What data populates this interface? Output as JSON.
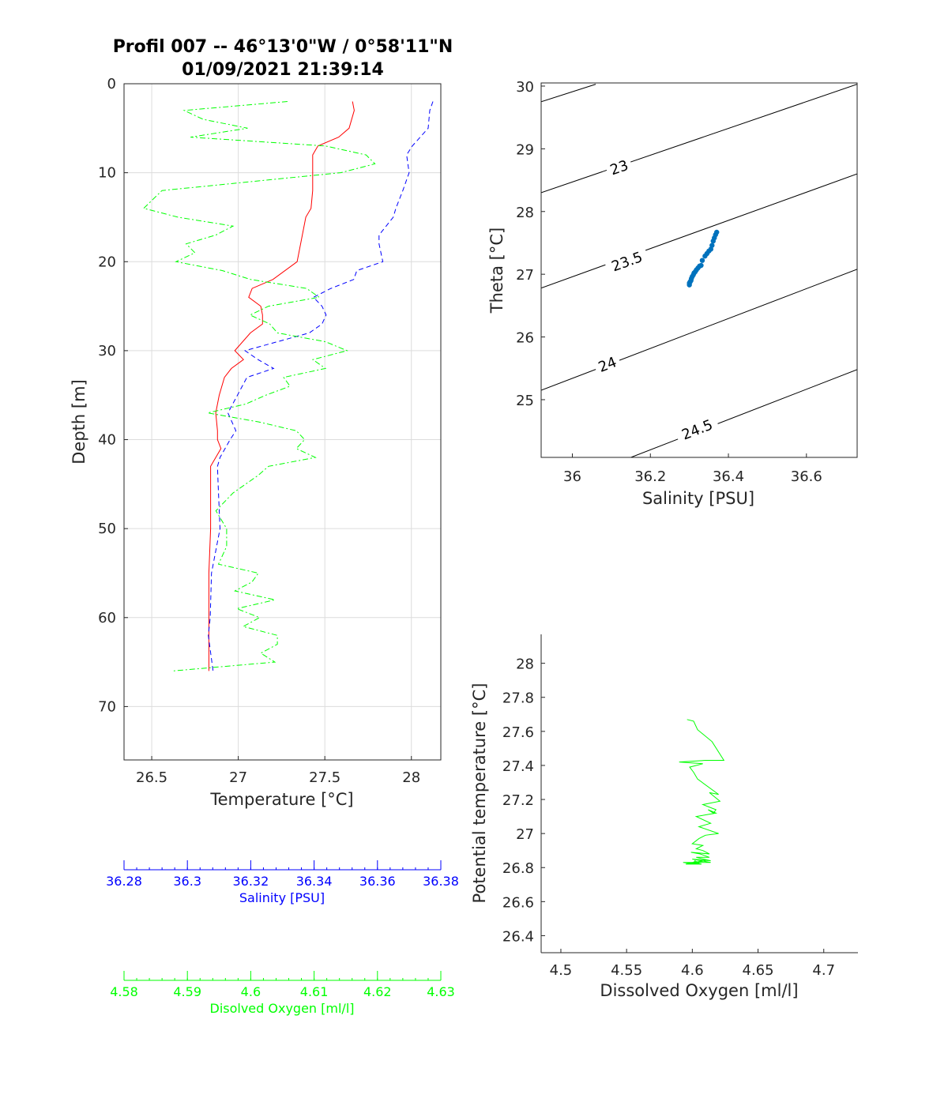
{
  "chart_data": [
    {
      "type": "line",
      "title": "Profil 007 -- 46°13'0\"W / 0°58'11\"N",
      "subtitle": "01/09/2021 21:39:14",
      "ylabel": "Depth [m]",
      "yreversed": true,
      "ylim": [
        0,
        76
      ],
      "yticks": [
        0,
        10,
        20,
        30,
        40,
        50,
        60,
        70
      ],
      "grid": true,
      "axes": [
        {
          "id": "temp",
          "label": "Temperature [°C]",
          "range": [
            26.34,
            28.17
          ],
          "ticks": [
            26.5,
            27,
            27.5,
            28
          ],
          "tick_labels": [
            "26.5",
            "27",
            "27.5",
            "28"
          ],
          "color": "#262626"
        },
        {
          "id": "sal",
          "label": "Salinity [PSU]",
          "range": [
            36.28,
            36.38
          ],
          "ticks": [
            36.28,
            36.3,
            36.32,
            36.34,
            36.36,
            36.38
          ],
          "tick_labels": [
            "36.28",
            "36.3",
            "36.32",
            "36.34",
            "36.36",
            "36.38"
          ],
          "color": "#0000ff"
        },
        {
          "id": "oxy",
          "label": "Disolved Oxygen [ml/l]",
          "range": [
            4.58,
            4.63
          ],
          "ticks": [
            4.58,
            4.59,
            4.6,
            4.61,
            4.62,
            4.63
          ],
          "tick_labels": [
            "4.58",
            "4.59",
            "4.6",
            "4.61",
            "4.62",
            "4.63"
          ],
          "color": "#00ff00"
        }
      ],
      "series": [
        {
          "axis": "temp",
          "color": "#ff0000",
          "style": "solid",
          "depth": [
            2,
            3,
            5,
            6,
            7,
            8,
            10,
            12,
            14,
            15,
            17,
            20,
            22,
            23,
            24,
            25,
            26,
            27,
            28,
            30,
            31,
            32,
            33,
            35,
            37,
            39,
            40,
            41,
            42,
            43,
            45,
            50,
            55,
            60,
            66
          ],
          "values": [
            27.66,
            27.67,
            27.64,
            27.58,
            27.46,
            27.43,
            27.43,
            27.43,
            27.42,
            27.39,
            27.37,
            27.34,
            27.2,
            27.08,
            27.06,
            27.13,
            27.14,
            27.14,
            27.07,
            26.98,
            27.03,
            26.96,
            26.92,
            26.89,
            26.87,
            26.88,
            26.88,
            26.9,
            26.87,
            26.84,
            26.84,
            26.84,
            26.83,
            26.83,
            26.83
          ]
        },
        {
          "axis": "sal",
          "color": "#0000ff",
          "style": "dashed",
          "depth": [
            2,
            3,
            5,
            7,
            8,
            10,
            12,
            14,
            15,
            17,
            18,
            20,
            21,
            22,
            23,
            24,
            25,
            26,
            27,
            28,
            30,
            31,
            32,
            33,
            35,
            37,
            39,
            40,
            42,
            43,
            45,
            50,
            55,
            60,
            62,
            66
          ],
          "values": [
            36.3775,
            36.3765,
            36.376,
            36.371,
            36.3692,
            36.37,
            36.368,
            36.3658,
            36.365,
            36.3605,
            36.3605,
            36.3617,
            36.3535,
            36.3525,
            36.3453,
            36.3398,
            36.3425,
            36.3438,
            36.3425,
            36.3385,
            36.3182,
            36.3223,
            36.3272,
            36.3188,
            36.3158,
            36.3128,
            36.3153,
            36.3135,
            36.3103,
            36.3095,
            36.3097,
            36.3103,
            36.3076,
            36.3072,
            36.3066,
            36.3081
          ]
        },
        {
          "axis": "oxy",
          "color": "#00ff00",
          "style": "dashdot",
          "depth": [
            2,
            3,
            4,
            5,
            6,
            7,
            8,
            9,
            10,
            12,
            14,
            15,
            16,
            17,
            18,
            19,
            20,
            21,
            22,
            23,
            24,
            25,
            26,
            27,
            28,
            29,
            30,
            31,
            32,
            33,
            34,
            35,
            36,
            37,
            38,
            39,
            40,
            41,
            42,
            43,
            44,
            46,
            48,
            50,
            52,
            54,
            55,
            56,
            57,
            58,
            59,
            60,
            61,
            62,
            63,
            64,
            65,
            66
          ],
          "values": [
            4.6058,
            4.5895,
            4.5925,
            4.5995,
            4.5905,
            4.6118,
            4.6182,
            4.6196,
            4.6142,
            4.586,
            4.5831,
            4.5885,
            4.5972,
            4.5945,
            4.5898,
            4.5912,
            4.5882,
            4.5955,
            4.6,
            4.6088,
            4.6108,
            4.6028,
            4.5999,
            4.603,
            4.6042,
            4.6118,
            4.6152,
            4.6098,
            4.6118,
            4.6052,
            4.6062,
            4.6024,
            4.5992,
            4.5932,
            4.6012,
            4.6072,
            4.6085,
            4.6072,
            4.6102,
            4.6028,
            4.6012,
            4.5972,
            4.5945,
            4.5962,
            4.5962,
            4.5949,
            4.6012,
            4.6002,
            4.5975,
            4.6038,
            4.5978,
            4.6014,
            4.5988,
            4.6042,
            4.6042,
            4.6016,
            4.6038,
            4.5876
          ]
        }
      ]
    },
    {
      "type": "scatter",
      "xlabel": "Salinity [PSU]",
      "ylabel": "Theta [°C]",
      "xlim": [
        35.92,
        36.73
      ],
      "ylim": [
        24.08,
        30.05
      ],
      "xticks": [
        36,
        36.2,
        36.4,
        36.6
      ],
      "xtick_labels": [
        "36",
        "36.2",
        "36.4",
        "36.6"
      ],
      "yticks": [
        25,
        26,
        27,
        28,
        29,
        30
      ],
      "ytick_labels": [
        "25",
        "26",
        "27",
        "28",
        "29",
        "30"
      ],
      "grid": false,
      "point_color": "#0072bd",
      "contours": [
        {
          "label": "23",
          "line": [
            [
              35.92,
              28.3
            ],
            [
              36.73,
              30.03
            ]
          ],
          "label_at": [
            36.12,
            28.7
          ]
        },
        {
          "label": "23.5",
          "line": [
            [
              35.92,
              26.78
            ],
            [
              36.73,
              28.6
            ]
          ],
          "label_at": [
            36.14,
            27.2
          ]
        },
        {
          "label": "24",
          "line": [
            [
              35.92,
              25.15
            ],
            [
              36.73,
              27.08
            ]
          ],
          "label_at": [
            36.09,
            25.56
          ]
        },
        {
          "label": "24.5",
          "line": [
            [
              36.15,
              24.08
            ],
            [
              36.73,
              25.48
            ]
          ],
          "label_at": [
            36.32,
            24.52
          ]
        },
        {
          "label": "",
          "line": [
            [
              35.92,
              29.75
            ],
            [
              36.06,
              30.03
            ]
          ]
        }
      ],
      "x": [
        36.3,
        36.3,
        36.302,
        36.304,
        36.305,
        36.307,
        36.31,
        36.312,
        36.315,
        36.318,
        36.322,
        36.326,
        36.33,
        36.333,
        36.34,
        36.345,
        36.35,
        36.355,
        36.358,
        36.361,
        36.364,
        36.367,
        36.37
      ],
      "y": [
        26.83,
        26.86,
        26.88,
        26.9,
        26.93,
        26.96,
        26.99,
        27.02,
        27.04,
        27.07,
        27.1,
        27.13,
        27.14,
        27.22,
        27.29,
        27.33,
        27.37,
        27.4,
        27.46,
        27.53,
        27.58,
        27.63,
        27.67
      ]
    },
    {
      "type": "line",
      "xlabel": "Dissolved Oxygen [ml/l]",
      "ylabel": "Potential temperature [°C]",
      "xlim": [
        4.485,
        4.726
      ],
      "ylim": [
        26.3,
        28.17
      ],
      "xticks": [
        4.5,
        4.55,
        4.6,
        4.65,
        4.7
      ],
      "xtick_labels": [
        "4.5",
        "4.55",
        "4.6",
        "4.65",
        "4.7"
      ],
      "yticks": [
        26.4,
        26.6,
        26.8,
        27,
        27.2,
        27.4,
        27.6,
        27.8,
        28
      ],
      "ytick_labels": [
        "26.4",
        "26.6",
        "26.8",
        "27",
        "27.2",
        "27.4",
        "27.6",
        "27.8",
        "28"
      ],
      "grid": false,
      "line_color": "#00ff00",
      "x": [
        4.596,
        4.601,
        4.604,
        4.615,
        4.624,
        4.61,
        4.59,
        4.608,
        4.598,
        4.601,
        4.604,
        4.62,
        4.613,
        4.621,
        4.608,
        4.618,
        4.616,
        4.612,
        4.618,
        4.603,
        4.614,
        4.605,
        4.62,
        4.61,
        4.605,
        4.6,
        4.608,
        4.603,
        4.608,
        4.613,
        4.599,
        4.606,
        4.613,
        4.603,
        4.614,
        4.6,
        4.614,
        4.603,
        4.61,
        4.6,
        4.606,
        4.602,
        4.601,
        4.599,
        4.593,
        4.604,
        4.6,
        4.607,
        4.595,
        4.603,
        4.6
      ],
      "y": [
        27.67,
        27.66,
        27.61,
        27.54,
        27.43,
        27.43,
        27.42,
        27.41,
        27.39,
        27.36,
        27.32,
        27.23,
        27.24,
        27.19,
        27.17,
        27.14,
        27.12,
        27.14,
        27.12,
        27.1,
        27.06,
        27.04,
        27.0,
        26.99,
        26.97,
        26.94,
        26.93,
        26.91,
        26.9,
        26.88,
        26.89,
        26.88,
        26.86,
        26.86,
        26.84,
        26.85,
        26.83,
        26.83,
        26.84,
        26.83,
        26.82,
        26.84,
        26.83,
        26.83,
        26.83,
        26.82,
        26.83,
        26.82,
        26.82,
        26.83,
        26.83
      ]
    }
  ]
}
